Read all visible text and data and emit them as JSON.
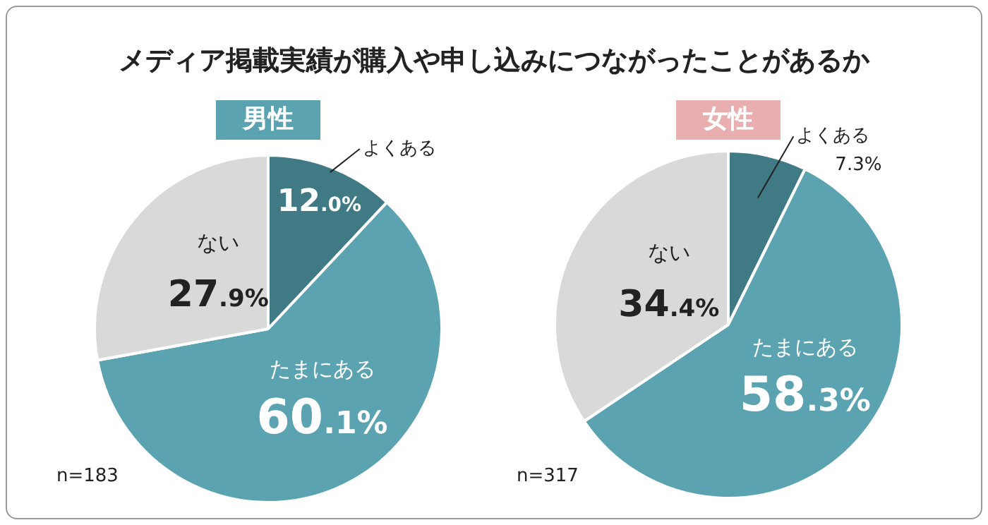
{
  "chart_data": [
    {
      "type": "other",
      "title": "メディア掲載実績が購入や申し込みにつながったことがあるか"
    },
    {
      "type": "pie",
      "title": "男性",
      "categories": [
        "よくある",
        "たまにある",
        "ない"
      ],
      "values": [
        12.0,
        60.1,
        27.9
      ],
      "value_labels": [
        "12.0%",
        "60.1%",
        "27.9%"
      ],
      "colors": [
        "#3f7a85",
        "#5ba3b0",
        "#d9d9d9"
      ],
      "annotations": [
        "n=183"
      ]
    },
    {
      "type": "pie",
      "title": "女性",
      "categories": [
        "よくある",
        "たまにある",
        "ない"
      ],
      "values": [
        7.3,
        58.3,
        34.4
      ],
      "value_labels": [
        "7.3%",
        "58.3%",
        "34.4%"
      ],
      "colors": [
        "#3f7a85",
        "#5ba3b0",
        "#d9d9d9"
      ],
      "annotations": [
        "n=317"
      ]
    }
  ]
}
